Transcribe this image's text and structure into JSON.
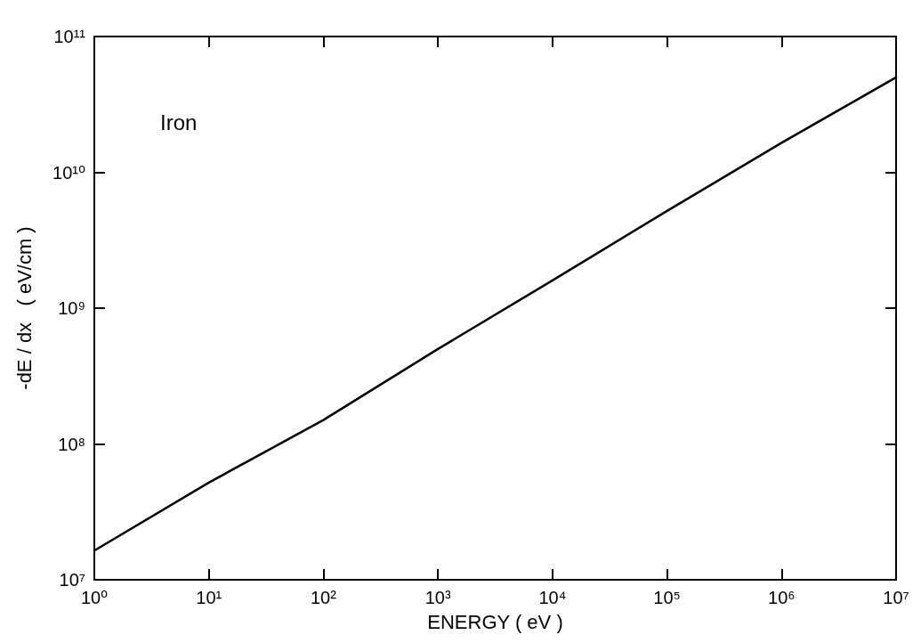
{
  "chart_data": {
    "type": "line",
    "xlabel": "ENERGY ( eV )",
    "ylabel": "-dE / dx   ( eV/cm )",
    "annotations": [
      "Iron"
    ],
    "log": "xy",
    "grid": false,
    "marker": "none",
    "line_style": "solid",
    "x": [
      1,
      10,
      100,
      1000,
      10000,
      100000,
      1000000,
      10000000
    ],
    "series": [
      {
        "color": "#000000",
        "values": [
          16400000,
          52000000,
          150000000,
          500000000,
          1600000000,
          5200000000,
          16500000000,
          50000000000
        ]
      }
    ],
    "xlim": [
      1,
      10000000
    ],
    "ylim": [
      10000000,
      100000000000
    ],
    "xticks": [
      {
        "value": 1,
        "label": "10⁰"
      },
      {
        "value": 10,
        "label": "10¹"
      },
      {
        "value": 100,
        "label": "10²"
      },
      {
        "value": 1000,
        "label": "10³"
      },
      {
        "value": 10000,
        "label": "10⁴"
      },
      {
        "value": 100000,
        "label": "10⁵"
      },
      {
        "value": 1000000,
        "label": "10⁶"
      },
      {
        "value": 10000000,
        "label": "10⁷"
      }
    ],
    "yticks": [
      {
        "value": 10000000,
        "label": "10⁷"
      },
      {
        "value": 100000000,
        "label": "10⁸"
      },
      {
        "value": 1000000000,
        "label": "10⁹"
      },
      {
        "value": 10000000000,
        "label": "10¹⁰"
      },
      {
        "value": 100000000000,
        "label": "10¹¹"
      }
    ]
  }
}
